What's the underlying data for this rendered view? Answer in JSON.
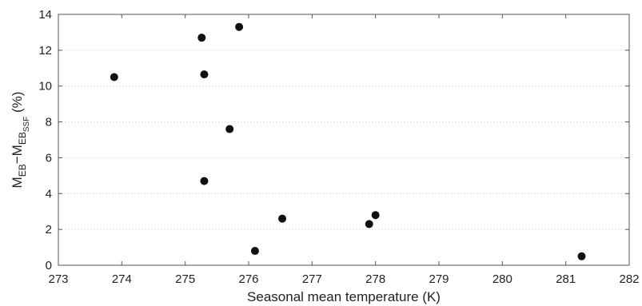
{
  "chart_data": {
    "type": "scatter",
    "title": "",
    "xlabel": "Seasonal mean temperature (K)",
    "ylabel": {
      "parts": [
        {
          "text": "M",
          "sub": false
        },
        {
          "text": "EB",
          "sub": true
        },
        {
          "text": "−M",
          "sub": false
        },
        {
          "text": "EB",
          "sub": true
        },
        {
          "text": "SSF",
          "sub": "double"
        },
        {
          "text": " (%)",
          "sub": false
        }
      ]
    },
    "xlim": [
      273,
      282
    ],
    "ylim": [
      0,
      14
    ],
    "xticks": [
      "273",
      "274",
      "275",
      "276",
      "277",
      "278",
      "279",
      "280",
      "281",
      "282"
    ],
    "yticks": [
      "0",
      "2",
      "4",
      "6",
      "8",
      "10",
      "12",
      "14"
    ],
    "grid": "horizontal-dotted",
    "points": [
      {
        "x": 273.88,
        "y": 10.5
      },
      {
        "x": 275.26,
        "y": 12.7
      },
      {
        "x": 275.85,
        "y": 13.3
      },
      {
        "x": 275.3,
        "y": 10.65
      },
      {
        "x": 275.7,
        "y": 7.6
      },
      {
        "x": 275.3,
        "y": 4.7
      },
      {
        "x": 276.1,
        "y": 0.8
      },
      {
        "x": 276.53,
        "y": 2.6
      },
      {
        "x": 277.9,
        "y": 2.3
      },
      {
        "x": 278.0,
        "y": 2.8
      },
      {
        "x": 281.25,
        "y": 0.5
      }
    ]
  }
}
